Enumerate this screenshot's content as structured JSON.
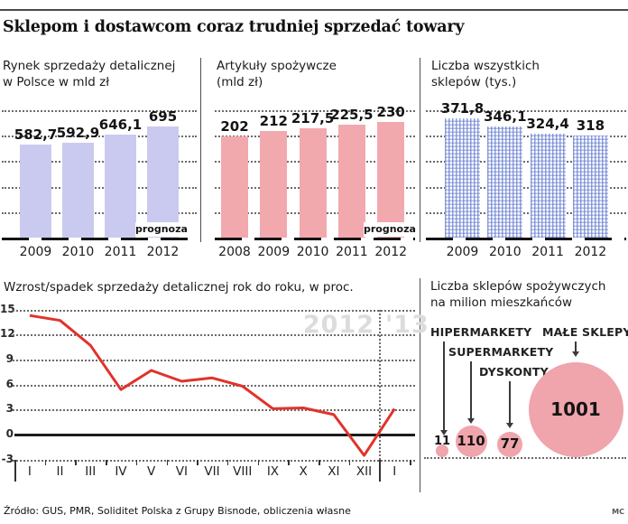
{
  "header": {
    "title": "Sklepom i dostawcom coraz trudniej sprzedać towary"
  },
  "footer": {
    "source": "Źródło: GUS, PMR, Soliditet Polska z Grupy Bisnode, obliczenia własne",
    "credit": "MC"
  },
  "colors": {
    "lavender_bar": "#cacaf0",
    "pink_bar": "#f2a9ae",
    "dotted_bar_blue": "#6078ce",
    "line_red": "#e0332c",
    "watermark_gray": "#dcdcdd",
    "rule_dark": "#4a4a4a"
  },
  "chart_data": [
    {
      "type": "bar",
      "title_lines": [
        "Rynek sprzedaży detalicznej",
        "w Polsce w mld zł"
      ],
      "categories": [
        "2009",
        "2010",
        "2011",
        "2012"
      ],
      "values": [
        582.7,
        592.9,
        646.1,
        695
      ],
      "value_labels": [
        "582,7",
        "592,9",
        "646,1",
        "695"
      ],
      "note": "prognoza",
      "ylim": [
        0,
        695
      ],
      "grid": "dotted-horizontal"
    },
    {
      "type": "bar",
      "title_lines": [
        "Artykuły spożywcze",
        "(mld zł)"
      ],
      "categories": [
        "2008",
        "2009",
        "2010",
        "2011",
        "2012"
      ],
      "values": [
        202,
        212,
        217.5,
        225.5,
        230
      ],
      "value_labels": [
        "202",
        "212",
        "217,5",
        "225,5",
        "230"
      ],
      "note": "prognoza",
      "ylim": [
        0,
        230
      ],
      "grid": "dotted-horizontal"
    },
    {
      "type": "bar",
      "title_lines": [
        "Liczba wszystkich",
        "sklepów (tys.)"
      ],
      "categories": [
        "2009",
        "2010",
        "2011",
        "2012"
      ],
      "values": [
        371.8,
        346.1,
        324.4,
        318
      ],
      "value_labels": [
        "371,8",
        "346,1",
        "324,4",
        "318"
      ],
      "note": null,
      "ylim": [
        0,
        371.8
      ],
      "grid": "dotted-horizontal"
    },
    {
      "type": "line",
      "title": "Wzrost/spadek sprzedaży detalicznej rok do roku, w proc.",
      "x_labels": [
        "I",
        "II",
        "III",
        "IV",
        "V",
        "VI",
        "VII",
        "VIII",
        "IX",
        "X",
        "XI",
        "XII",
        "I"
      ],
      "values": [
        14.3,
        13.7,
        10.7,
        5.4,
        7.7,
        6.4,
        6.8,
        5.8,
        3.1,
        3.2,
        2.4,
        -2.5,
        3.1
      ],
      "y_ticks": [
        15,
        12,
        9,
        6,
        3,
        0,
        -3
      ],
      "ylim": [
        -3,
        15
      ],
      "watermark_left": "2012",
      "watermark_right": "'13",
      "grid": "dotted-horizontal"
    },
    {
      "type": "bubble",
      "title_lines": [
        "Liczba sklepów spożywczych",
        "na milion mieszkańców"
      ],
      "items": [
        {
          "label": "HIPERMARKETY",
          "value": 11,
          "value_label": "11"
        },
        {
          "label": "SUPERMARKETY",
          "value": 110,
          "value_label": "110"
        },
        {
          "label": "DYSKONTY",
          "value": 77,
          "value_label": "77"
        },
        {
          "label": "MAŁE SKLEPY",
          "value": 1001,
          "value_label": "1001"
        }
      ]
    }
  ]
}
